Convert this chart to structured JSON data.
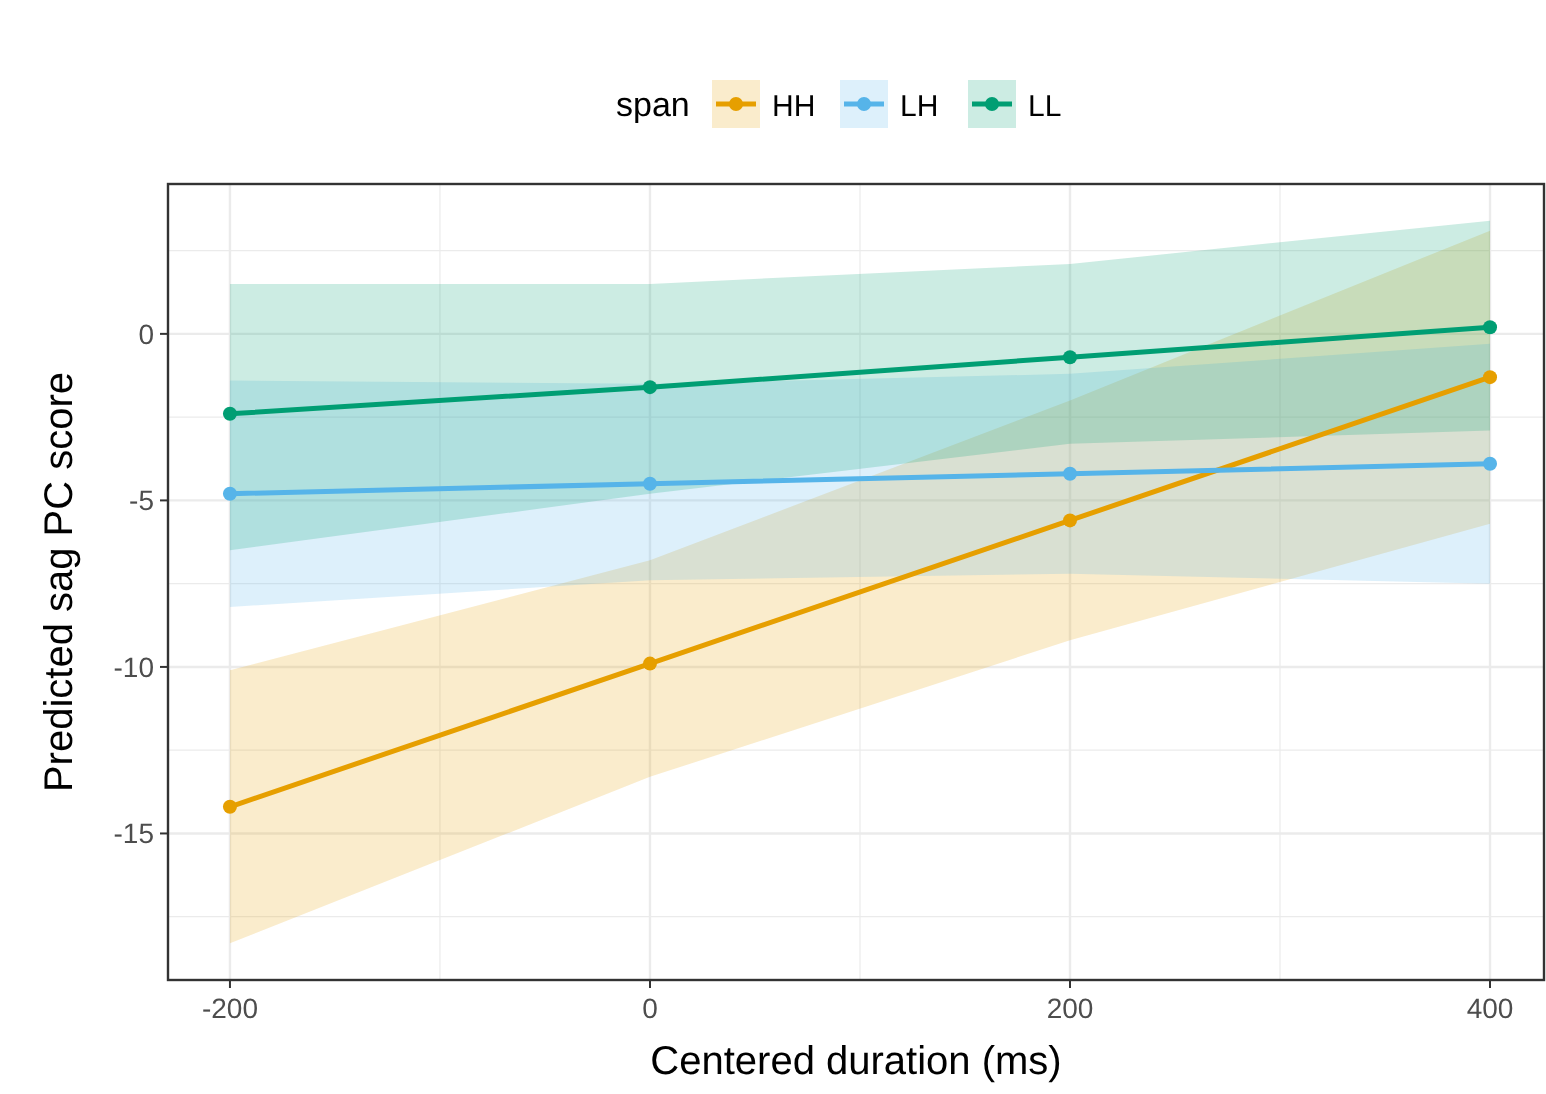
{
  "chart_data": {
    "type": "line",
    "xlabel": "Centered duration (ms)",
    "ylabel": "Predicted sag PC score",
    "legend_title": "span",
    "legend": "top",
    "grid": true,
    "marker": "circle",
    "x": [
      -200,
      0,
      200,
      400
    ],
    "xlim": [
      -229.5,
      425.7
    ],
    "ylim": [
      -19.4,
      4.5
    ],
    "xticks": [
      -200,
      {
        "value": -100,
        "label": null
      },
      0,
      {
        "value": 100,
        "label": null
      },
      200,
      {
        "value": 300,
        "label": null
      },
      400
    ],
    "yticks": [
      {
        "value": -17.5,
        "label": null
      },
      -15,
      {
        "value": -12.5,
        "label": null
      },
      -10,
      {
        "value": -7.5,
        "label": null
      },
      -5,
      {
        "value": -2.5,
        "label": null
      },
      0,
      {
        "value": 2.5,
        "label": null
      }
    ],
    "series": [
      {
        "name": "HH",
        "color": "#e69f00",
        "values": [
          -14.2,
          -9.9,
          -5.6,
          -1.3
        ],
        "lower": [
          -18.3,
          -13.3,
          -9.2,
          -5.7
        ],
        "upper": [
          -10.1,
          -6.8,
          -2.0,
          3.1
        ]
      },
      {
        "name": "LH",
        "color": "#56b4e9",
        "values": [
          -4.8,
          -4.5,
          -4.2,
          -3.9
        ],
        "lower": [
          -8.2,
          -7.4,
          -7.2,
          -7.5
        ],
        "upper": [
          -1.4,
          -1.5,
          -1.2,
          -0.3
        ]
      },
      {
        "name": "LL",
        "color": "#009e73",
        "values": [
          -2.4,
          -1.6,
          -0.7,
          0.2
        ],
        "lower": [
          -6.5,
          -4.8,
          -3.3,
          -2.9
        ],
        "upper": [
          1.5,
          1.5,
          2.1,
          3.4
        ]
      }
    ]
  }
}
